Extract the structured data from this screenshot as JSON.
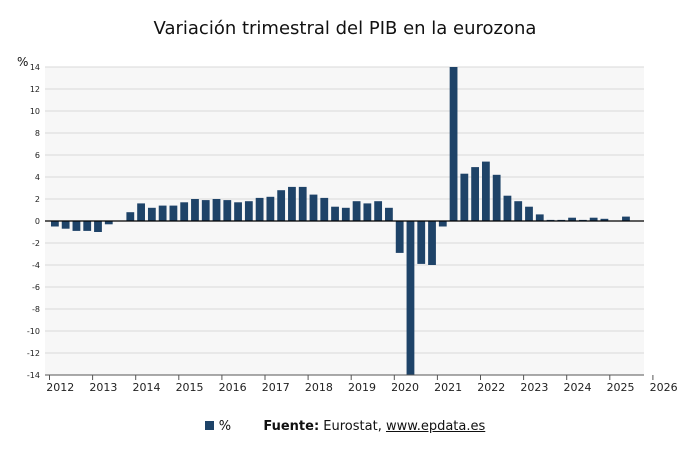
{
  "chart_data": {
    "type": "bar",
    "title": "Variación trimestral del PIB en la eurozona",
    "ylabel": "%",
    "ylim": [
      -14,
      14
    ],
    "yticks": [
      -14,
      -12,
      -10,
      -8,
      -6,
      -4,
      -2,
      0,
      2,
      4,
      6,
      8,
      10,
      12,
      14
    ],
    "grid": true,
    "bar_color": "#1e4368",
    "x_tick_labels": [
      "2012",
      "2013",
      "2014",
      "2015",
      "2016",
      "2017",
      "2018",
      "2019",
      "2020",
      "2021",
      "2022",
      "2023",
      "2024",
      "2025",
      "2026"
    ],
    "categories": [
      "2012-Q1",
      "2012-Q2",
      "2012-Q3",
      "2012-Q4",
      "2013-Q1",
      "2013-Q2",
      "2013-Q3",
      "2013-Q4",
      "2014-Q1",
      "2014-Q2",
      "2014-Q3",
      "2014-Q4",
      "2015-Q1",
      "2015-Q2",
      "2015-Q3",
      "2015-Q4",
      "2016-Q1",
      "2016-Q2",
      "2016-Q3",
      "2016-Q4",
      "2017-Q1",
      "2017-Q2",
      "2017-Q3",
      "2017-Q4",
      "2018-Q1",
      "2018-Q2",
      "2018-Q3",
      "2018-Q4",
      "2019-Q1",
      "2019-Q2",
      "2019-Q3",
      "2019-Q4",
      "2020-Q1",
      "2020-Q2",
      "2020-Q3",
      "2020-Q4",
      "2021-Q1",
      "2021-Q2",
      "2021-Q3",
      "2021-Q4",
      "2022-Q1",
      "2022-Q2",
      "2022-Q3",
      "2022-Q4",
      "2023-Q1",
      "2023-Q2",
      "2023-Q3",
      "2023-Q4",
      "2024-Q1",
      "2024-Q2",
      "2024-Q3",
      "2024-Q4",
      "2025-Q1",
      "2025-Q2",
      "2025-Q3",
      "2025-Q4"
    ],
    "series": [
      {
        "name": "%",
        "values": [
          -0.5,
          -0.7,
          -0.9,
          -0.9,
          -1.0,
          -0.3,
          0.0,
          0.8,
          1.6,
          1.2,
          1.4,
          1.4,
          1.7,
          2.0,
          1.9,
          2.0,
          1.9,
          1.7,
          1.8,
          2.1,
          2.2,
          2.8,
          3.1,
          3.1,
          2.4,
          2.1,
          1.3,
          1.2,
          1.8,
          1.6,
          1.8,
          1.2,
          -2.9,
          -14.5,
          -3.9,
          -4.0,
          -0.5,
          14.5,
          4.3,
          4.9,
          5.4,
          4.2,
          2.3,
          1.8,
          1.3,
          0.6,
          0.1,
          0.1,
          0.3,
          0.1,
          0.3,
          0.2,
          0.0,
          0.4,
          0.0,
          0.0
        ]
      }
    ]
  },
  "legend": {
    "series_label": "%",
    "source_label": "Fuente:",
    "source_text": "Eurostat,",
    "source_link": "www.epdata.es"
  }
}
